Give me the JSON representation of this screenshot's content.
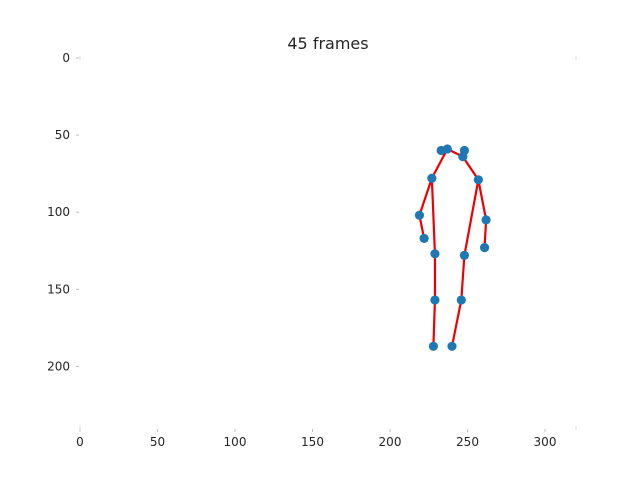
{
  "chart_data": {
    "type": "scatter",
    "title": "45 frames",
    "xlabel": "",
    "ylabel": "",
    "xlim": [
      0,
      320
    ],
    "ylim": [
      240,
      0
    ],
    "y_inverted": true,
    "grid": false,
    "x_ticks": [
      0,
      50,
      100,
      150,
      200,
      250,
      300
    ],
    "y_ticks": [
      0,
      50,
      100,
      150,
      200
    ],
    "point_color": "#1f77b4",
    "line_color": "#ee0000",
    "points": [
      {
        "x": 233,
        "y": 60
      },
      {
        "x": 237,
        "y": 59
      },
      {
        "x": 248,
        "y": 60
      },
      {
        "x": 247,
        "y": 64
      },
      {
        "x": 227,
        "y": 78
      },
      {
        "x": 257,
        "y": 79
      },
      {
        "x": 219,
        "y": 102
      },
      {
        "x": 262,
        "y": 105
      },
      {
        "x": 222,
        "y": 117
      },
      {
        "x": 261,
        "y": 123
      },
      {
        "x": 229,
        "y": 127
      },
      {
        "x": 248,
        "y": 128
      },
      {
        "x": 229,
        "y": 157
      },
      {
        "x": 246,
        "y": 157
      },
      {
        "x": 228,
        "y": 187
      },
      {
        "x": 240,
        "y": 187
      }
    ],
    "segments": [
      [
        [
          237,
          59
        ],
        [
          247,
          64
        ]
      ],
      [
        [
          237,
          59
        ],
        [
          227,
          78
        ]
      ],
      [
        [
          247,
          64
        ],
        [
          257,
          79
        ]
      ],
      [
        [
          227,
          78
        ],
        [
          219,
          102
        ]
      ],
      [
        [
          219,
          102
        ],
        [
          222,
          117
        ]
      ],
      [
        [
          257,
          79
        ],
        [
          262,
          105
        ]
      ],
      [
        [
          262,
          105
        ],
        [
          261,
          123
        ]
      ],
      [
        [
          227,
          78
        ],
        [
          229,
          127
        ]
      ],
      [
        [
          229,
          127
        ],
        [
          229,
          157
        ]
      ],
      [
        [
          229,
          157
        ],
        [
          228,
          187
        ]
      ],
      [
        [
          257,
          79
        ],
        [
          248,
          128
        ]
      ],
      [
        [
          248,
          128
        ],
        [
          246,
          157
        ]
      ],
      [
        [
          246,
          157
        ],
        [
          240,
          187
        ]
      ]
    ]
  }
}
